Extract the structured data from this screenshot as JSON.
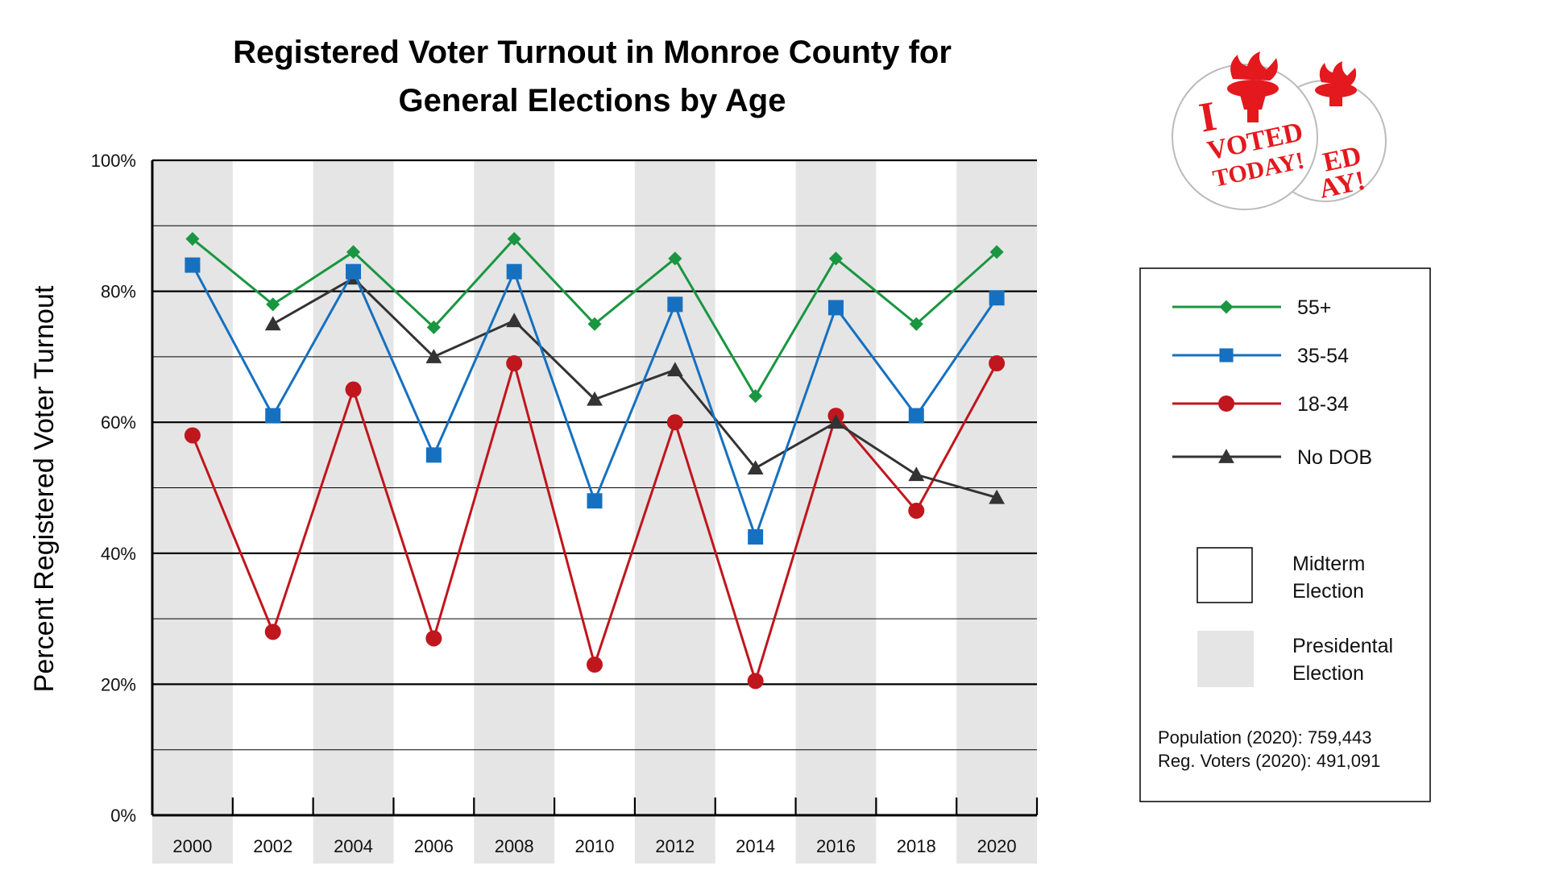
{
  "colors": {
    "presidential_band": "#e5e5e5",
    "series_55_plus": "#1a9641",
    "series_35_54": "#1670c0",
    "series_18_34": "#c0161d",
    "series_no_dob": "#333333",
    "sticker_red": "#e3191e"
  },
  "chart_data": {
    "type": "line",
    "title": "Registered Voter Turnout in Monroe County for General Elections by Age",
    "title_lines": [
      "Registered Voter Turnout in Monroe County for",
      "General Elections by Age"
    ],
    "xlabel": "",
    "ylabel": "Percent Registered Voter Turnout",
    "categories": [
      "2000",
      "2002",
      "2004",
      "2006",
      "2008",
      "2010",
      "2012",
      "2014",
      "2016",
      "2018",
      "2020"
    ],
    "presidential": [
      true,
      false,
      true,
      false,
      true,
      false,
      true,
      false,
      true,
      false,
      true
    ],
    "ylim": [
      0,
      100
    ],
    "yticks": [
      0,
      20,
      40,
      60,
      80,
      100
    ],
    "ytick_labels": [
      "0%",
      "20%",
      "40%",
      "60%",
      "80%",
      "100%"
    ],
    "minor_gridlines": [
      10,
      30,
      50,
      70,
      90
    ],
    "grid": true,
    "legend_placement": "right",
    "series": [
      {
        "name": "55+",
        "marker": "diamond",
        "color_key": "series_55_plus",
        "values": [
          88,
          78,
          86,
          74.5,
          88,
          75,
          85,
          64,
          85,
          75,
          86
        ]
      },
      {
        "name": "35-54",
        "marker": "square",
        "color_key": "series_35_54",
        "values": [
          84,
          61,
          83,
          55,
          83,
          48,
          78,
          42.5,
          77.5,
          61,
          79
        ]
      },
      {
        "name": "18-34",
        "marker": "circle",
        "color_key": "series_18_34",
        "values": [
          58,
          28,
          65,
          27,
          69,
          23,
          60,
          20.5,
          61,
          46.5,
          69
        ]
      },
      {
        "name": "No DOB",
        "marker": "triangle",
        "color_key": "series_no_dob",
        "values": [
          null,
          75,
          82,
          70,
          75.5,
          63.5,
          68,
          53,
          60,
          52,
          48.5
        ]
      }
    ],
    "legend_election_types": [
      {
        "label_lines": [
          "Midterm",
          "Election"
        ],
        "swatch": "white"
      },
      {
        "label_lines": [
          "Presidental",
          "Election"
        ],
        "swatch": "gray"
      }
    ],
    "notes": [
      "Population (2020): 759,443",
      "Reg. Voters (2020): 491,091"
    ]
  },
  "sticker": {
    "line1": "I",
    "line2": "VOTED",
    "line3": "TODAY!",
    "back_line2": "ED",
    "back_line3": "AY!"
  }
}
